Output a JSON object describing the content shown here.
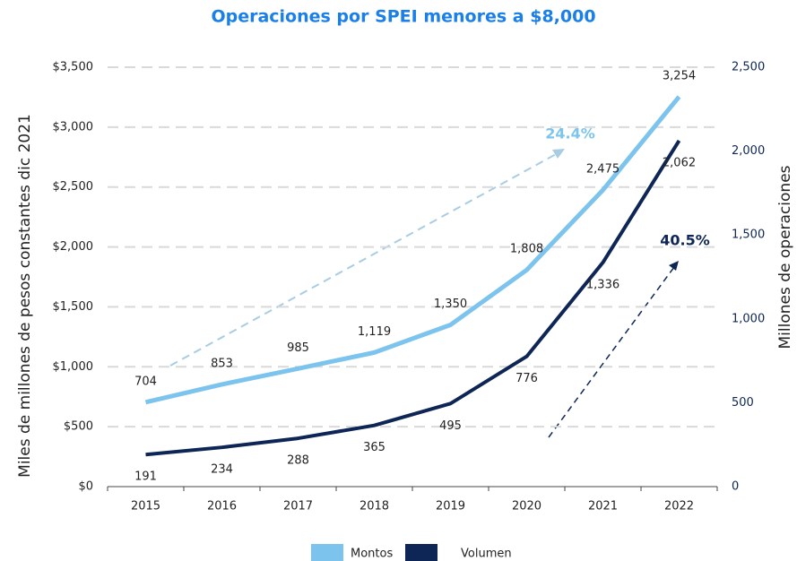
{
  "chart_data": {
    "type": "line",
    "title": "Operaciones por SPEI menores a $8,000",
    "ylabel": "Miles de millones de pesos constantes dic 2021",
    "y2label": "Millones de operaciones",
    "categories": [
      "2015",
      "2016",
      "2017",
      "2018",
      "2019",
      "2020",
      "2021",
      "2022"
    ],
    "series": [
      {
        "name": "Montos",
        "color": "#7cc4ee",
        "values": [
          704,
          853,
          985,
          1119,
          1350,
          1808,
          2475,
          3254
        ],
        "value_labels": [
          "704",
          "853",
          "985",
          "1,119",
          "1,350",
          "1,808",
          "2,475",
          "3,254"
        ]
      },
      {
        "name": "Volumen",
        "color": "#0d2656",
        "axis": "y2",
        "values": [
          191,
          234,
          288,
          365,
          495,
          776,
          1336,
          2062
        ],
        "value_labels": [
          "191",
          "234",
          "288",
          "365",
          "495",
          "776",
          "1,336",
          "2,062"
        ]
      }
    ],
    "ylim": [
      0,
      3500
    ],
    "yticks": [
      {
        "value": 0,
        "label": "$0"
      },
      {
        "value": 500,
        "label": "$500"
      },
      {
        "value": 1000,
        "label": "$1,000"
      },
      {
        "value": 1500,
        "label": "$1,500"
      },
      {
        "value": 2000,
        "label": "$2,000"
      },
      {
        "value": 2500,
        "label": "$2,500"
      },
      {
        "value": 3000,
        "label": "$3,000"
      },
      {
        "value": 3500,
        "label": "$3,500"
      }
    ],
    "y2lim": [
      0,
      2500
    ],
    "y2ticks": [
      0,
      500,
      {
        "value": 1000,
        "label": "1,000"
      },
      {
        "value": 1500,
        "label": "1,500"
      },
      {
        "value": 2000,
        "label": "2,000"
      },
      {
        "value": 2500,
        "label": "2,500"
      }
    ],
    "grid": true,
    "annotations": [
      "24.4%",
      "40.5%"
    ],
    "legend": "bottom"
  }
}
